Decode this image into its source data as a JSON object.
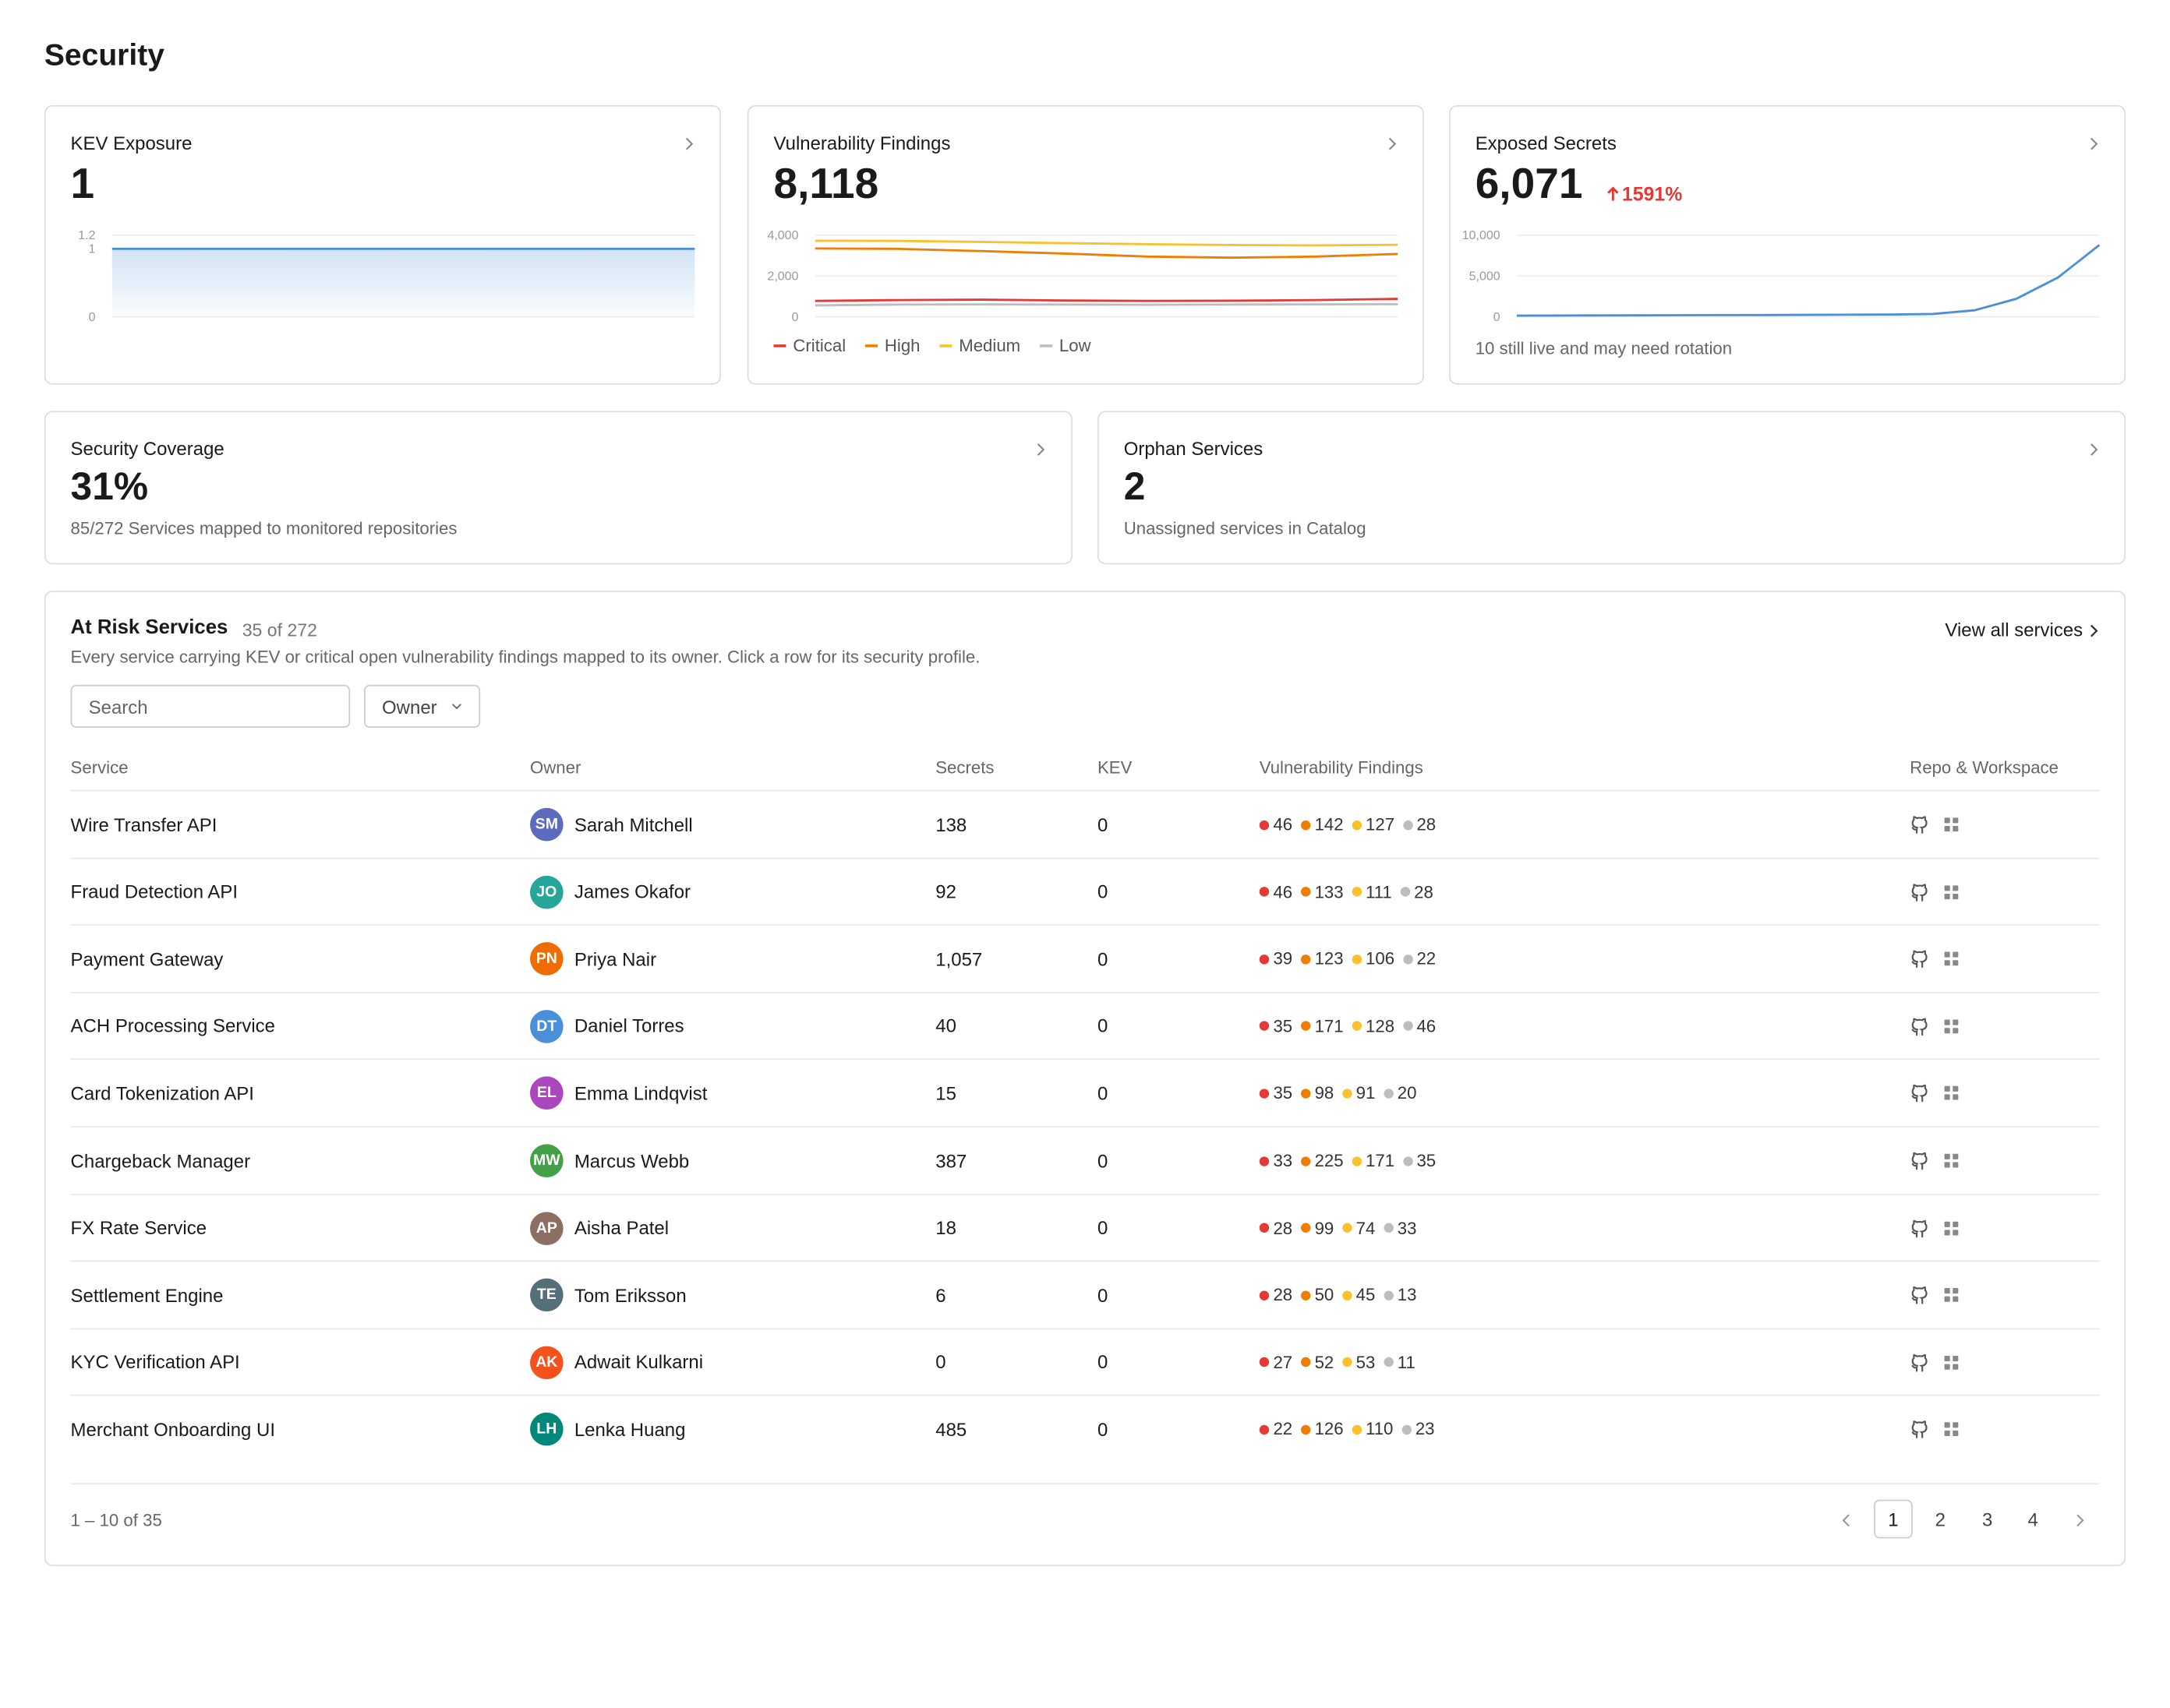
{
  "header": {
    "title": "Security"
  },
  "cards": [
    {
      "title": "KEV Exposure",
      "value": "1",
      "chart_data": {
        "type": "area",
        "ylim": [
          0,
          1.2
        ],
        "yticks": [
          0,
          1,
          1.2
        ],
        "grid": true,
        "series": [
          {
            "color": "#4a90d9",
            "values": [
              1,
              1,
              1,
              1,
              1,
              1,
              1,
              1
            ]
          }
        ]
      }
    },
    {
      "title": "Vulnerability Findings",
      "value": "8,118",
      "chart_data": {
        "type": "line",
        "ylim": [
          0,
          4000
        ],
        "yticks": [
          0,
          {
            "value": 2000,
            "label": "2,000"
          },
          {
            "value": 4000,
            "label": "4,000"
          }
        ],
        "grid": true,
        "legend": "bottom",
        "series": [
          {
            "name": "Critical",
            "color": "#e53935",
            "values": [
              780,
              820,
              840,
              800,
              780,
              790,
              820,
              880
            ]
          },
          {
            "name": "High",
            "color": "#ef7d00",
            "values": [
              3350,
              3330,
              3220,
              3100,
              2950,
              2900,
              2950,
              3080
            ]
          },
          {
            "name": "Medium",
            "color": "#fbc02d",
            "values": [
              3730,
              3720,
              3670,
              3610,
              3560,
              3520,
              3500,
              3530
            ]
          },
          {
            "name": "Low",
            "color": "#bdbdbd",
            "values": [
              560,
              600,
              610,
              600,
              590,
              600,
              610,
              620
            ]
          }
        ]
      }
    },
    {
      "title": "Exposed Secrets",
      "value": "6,071",
      "change": "1591%",
      "caption": "10 still live and may need rotation",
      "chart_data": {
        "type": "line",
        "ylim": [
          0,
          10000
        ],
        "yticks": [
          0,
          {
            "value": 5000,
            "label": "5,000"
          },
          {
            "value": 10000,
            "label": "10,000"
          }
        ],
        "grid": true,
        "series": [
          {
            "color": "#4a90d9",
            "values": [
              150,
              160,
              170,
              180,
              200,
              210,
              220,
              240,
              260,
              280,
              350,
              800,
              2200,
              4800,
              8800
            ]
          }
        ]
      }
    },
    {
      "title": "Security Coverage",
      "value": "31%",
      "caption": "85/272 Services mapped to monitored repositories"
    },
    {
      "title": "Orphan Services",
      "value": "2",
      "caption": "Unassigned services in Catalog"
    }
  ],
  "table": {
    "title": "At Risk Services",
    "count": "35 of 272",
    "description": "Every service carrying KEV or critical open vulnerability findings mapped to its owner. Click a row for its security profile.",
    "link": "View all services",
    "search": "Search",
    "filter": "Owner",
    "columns": [
      "Service",
      "Owner",
      "Secrets",
      "KEV",
      "Vulnerability Findings",
      "Repo & Workspace"
    ],
    "rows": [
      {
        "service": "Wire Transfer API",
        "initials": "SM",
        "avatar_color": "#5c6bc0",
        "owner": "Sarah Mitchell",
        "secrets": "138",
        "kev": "0",
        "findings": [
          46,
          142,
          127,
          28
        ]
      },
      {
        "service": "Fraud Detection API",
        "initials": "JO",
        "avatar_color": "#26a69a",
        "owner": "James Okafor",
        "secrets": "92",
        "kev": "0",
        "findings": [
          46,
          133,
          111,
          28
        ]
      },
      {
        "service": "Payment Gateway",
        "initials": "PN",
        "avatar_color": "#ef6c00",
        "owner": "Priya Nair",
        "secrets": "1,057",
        "kev": "0",
        "findings": [
          39,
          123,
          106,
          22
        ]
      },
      {
        "service": "ACH Processing Service",
        "initials": "DT",
        "avatar_color": "#4a90d9",
        "owner": "Daniel Torres",
        "secrets": "40",
        "kev": "0",
        "findings": [
          35,
          171,
          128,
          46
        ]
      },
      {
        "service": "Card Tokenization API",
        "initials": "EL",
        "avatar_color": "#ab47bc",
        "owner": "Emma Lindqvist",
        "secrets": "15",
        "kev": "0",
        "findings": [
          35,
          98,
          91,
          20
        ]
      },
      {
        "service": "Chargeback Manager",
        "initials": "MW",
        "avatar_color": "#43a047",
        "owner": "Marcus Webb",
        "secrets": "387",
        "kev": "0",
        "findings": [
          33,
          225,
          171,
          35
        ]
      },
      {
        "service": "FX Rate Service",
        "initials": "AP",
        "avatar_color": "#8d6e63",
        "owner": "Aisha Patel",
        "secrets": "18",
        "kev": "0",
        "findings": [
          28,
          99,
          74,
          33
        ]
      },
      {
        "service": "Settlement Engine",
        "initials": "TE",
        "avatar_color": "#546e7a",
        "owner": "Tom Eriksson",
        "secrets": "6",
        "kev": "0",
        "findings": [
          28,
          50,
          45,
          13
        ]
      },
      {
        "service": "KYC Verification API",
        "initials": "AK",
        "avatar_color": "#f4511e",
        "owner": "Adwait Kulkarni",
        "secrets": "0",
        "kev": "0",
        "findings": [
          27,
          52,
          53,
          11
        ]
      },
      {
        "service": "Merchant Onboarding UI",
        "initials": "LH",
        "avatar_color": "#00897b",
        "owner": "Lenka Huang",
        "secrets": "485",
        "kev": "0",
        "findings": [
          22,
          126,
          110,
          23
        ]
      }
    ],
    "range": "1 – 10 of 35",
    "pages": [
      "1",
      "2",
      "3",
      "4"
    ],
    "current_page": "1"
  }
}
